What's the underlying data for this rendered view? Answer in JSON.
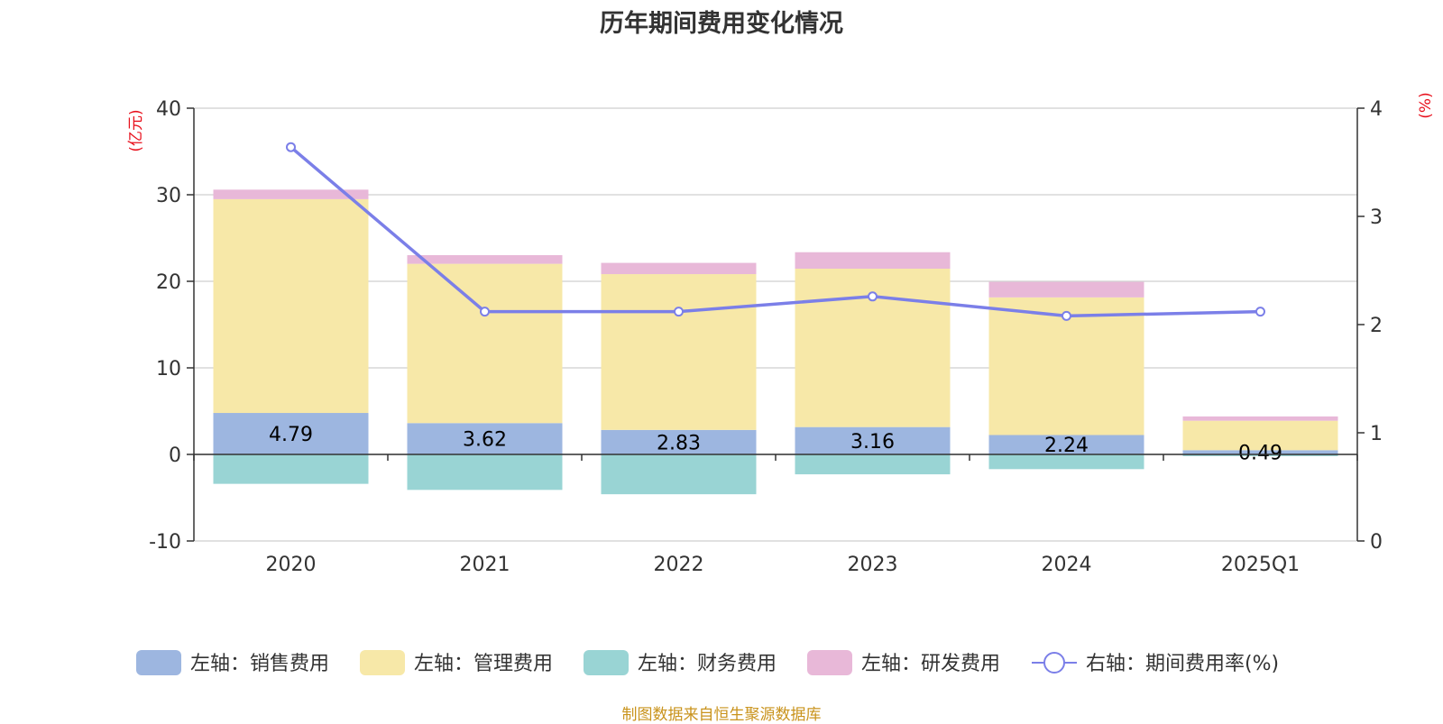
{
  "chart_data": {
    "type": "bar",
    "stacked": true,
    "title": "历年期间费用变化情况",
    "categories": [
      "2020",
      "2021",
      "2022",
      "2023",
      "2024",
      "2025Q1"
    ],
    "left_axis": {
      "unit_label": "(亿元)",
      "range": [
        -10,
        40
      ],
      "ticks": [
        -10,
        0,
        10,
        20,
        30,
        40
      ],
      "tick_labels": [
        "-10",
        "0",
        "10",
        "20",
        "30",
        "40"
      ]
    },
    "right_axis": {
      "unit_label": "(%)",
      "range": [
        0,
        4
      ],
      "ticks": [
        0,
        1,
        2,
        3,
        4
      ],
      "tick_labels": [
        "0",
        "1",
        "2",
        "3",
        "4"
      ]
    },
    "grid": true,
    "legend_position": "bottom",
    "series": [
      {
        "name": "左轴：销售费用",
        "axis": "left",
        "type": "bar",
        "color": "#9db6e0",
        "values": [
          4.79,
          3.62,
          2.83,
          3.16,
          2.24,
          0.49
        ],
        "data_labels": [
          "4.79",
          "3.62",
          "2.83",
          "3.16",
          "2.24",
          "0.49"
        ]
      },
      {
        "name": "左轴：管理费用",
        "axis": "left",
        "type": "bar",
        "color": "#f7e8a8",
        "values": [
          24.7,
          18.4,
          18.0,
          18.3,
          15.9,
          3.4
        ]
      },
      {
        "name": "左轴：财务费用",
        "axis": "left",
        "type": "bar",
        "color": "#99d4d4",
        "values": [
          -3.4,
          -4.1,
          -4.6,
          -2.3,
          -1.7,
          -0.2
        ]
      },
      {
        "name": "左轴：研发费用",
        "axis": "left",
        "type": "bar",
        "color": "#e8b8d8",
        "values": [
          1.1,
          1.0,
          1.3,
          1.9,
          1.8,
          0.5
        ]
      },
      {
        "name": "右轴：期间费用率(%)",
        "axis": "right",
        "type": "line",
        "color": "#7b7fe8",
        "values": [
          3.64,
          2.12,
          2.12,
          2.26,
          2.08,
          2.12
        ]
      }
    ],
    "source_note": "制图数据来自恒生聚源数据库"
  }
}
